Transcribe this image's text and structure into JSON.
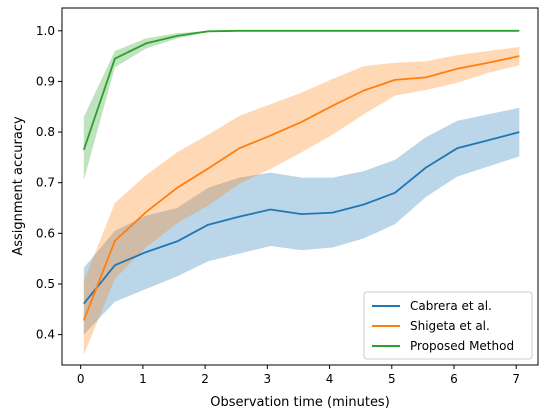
{
  "chart_data": {
    "type": "line",
    "xlabel": "Observation time (minutes)",
    "ylabel": "Assignment accuracy",
    "xlim": [
      -0.3,
      7.35
    ],
    "ylim": [
      0.34,
      1.045
    ],
    "xticks": [
      0,
      1,
      2,
      3,
      4,
      5,
      6,
      7
    ],
    "yticks": [
      0.4,
      0.5,
      0.6,
      0.7,
      0.8,
      0.9,
      1.0
    ],
    "ytick_labels": [
      "0.4",
      "0.5",
      "0.6",
      "0.7",
      "0.8",
      "0.9",
      "1.0"
    ],
    "grid": false,
    "legend_position": "bottom-right",
    "x": [
      0.05,
      0.55,
      1.05,
      1.55,
      2.05,
      2.55,
      3.05,
      3.55,
      4.05,
      4.55,
      5.05,
      5.55,
      6.05,
      6.55,
      7.05
    ],
    "series": [
      {
        "name": "Cabrera et al.",
        "color": "#1f77b4",
        "values": [
          0.461,
          0.537,
          0.563,
          0.584,
          0.617,
          0.633,
          0.647,
          0.638,
          0.641,
          0.657,
          0.68,
          0.73,
          0.768,
          0.784,
          0.8
        ],
        "lower": [
          0.4,
          0.465,
          0.49,
          0.515,
          0.545,
          0.56,
          0.575,
          0.567,
          0.572,
          0.59,
          0.618,
          0.672,
          0.712,
          0.732,
          0.752
        ],
        "upper": [
          0.532,
          0.605,
          0.635,
          0.65,
          0.69,
          0.71,
          0.72,
          0.71,
          0.71,
          0.723,
          0.745,
          0.79,
          0.822,
          0.835,
          0.848
        ]
      },
      {
        "name": "Shigeta et al.",
        "color": "#ff7f0e",
        "values": [
          0.428,
          0.585,
          0.642,
          0.69,
          0.728,
          0.768,
          0.793,
          0.82,
          0.852,
          0.882,
          0.903,
          0.908,
          0.925,
          0.937,
          0.95
        ],
        "lower": [
          0.36,
          0.51,
          0.572,
          0.62,
          0.655,
          0.698,
          0.727,
          0.76,
          0.795,
          0.835,
          0.872,
          0.883,
          0.897,
          0.917,
          0.932
        ],
        "upper": [
          0.505,
          0.66,
          0.715,
          0.76,
          0.795,
          0.832,
          0.855,
          0.878,
          0.905,
          0.93,
          0.937,
          0.94,
          0.952,
          0.96,
          0.968
        ]
      },
      {
        "name": "Proposed Method",
        "color": "#2ca02c",
        "values": [
          0.765,
          0.945,
          0.975,
          0.99,
          0.999,
          1.0,
          1.0,
          1.0,
          1.0,
          1.0,
          1.0,
          1.0,
          1.0,
          1.0,
          1.0
        ],
        "lower": [
          0.705,
          0.928,
          0.965,
          0.985,
          0.998,
          1.0,
          1.0,
          1.0,
          1.0,
          1.0,
          1.0,
          1.0,
          1.0,
          1.0,
          1.0
        ],
        "upper": [
          0.83,
          0.96,
          0.985,
          0.995,
          1.0,
          1.0,
          1.0,
          1.0,
          1.0,
          1.0,
          1.0,
          1.0,
          1.0,
          1.0,
          1.0
        ]
      }
    ]
  }
}
